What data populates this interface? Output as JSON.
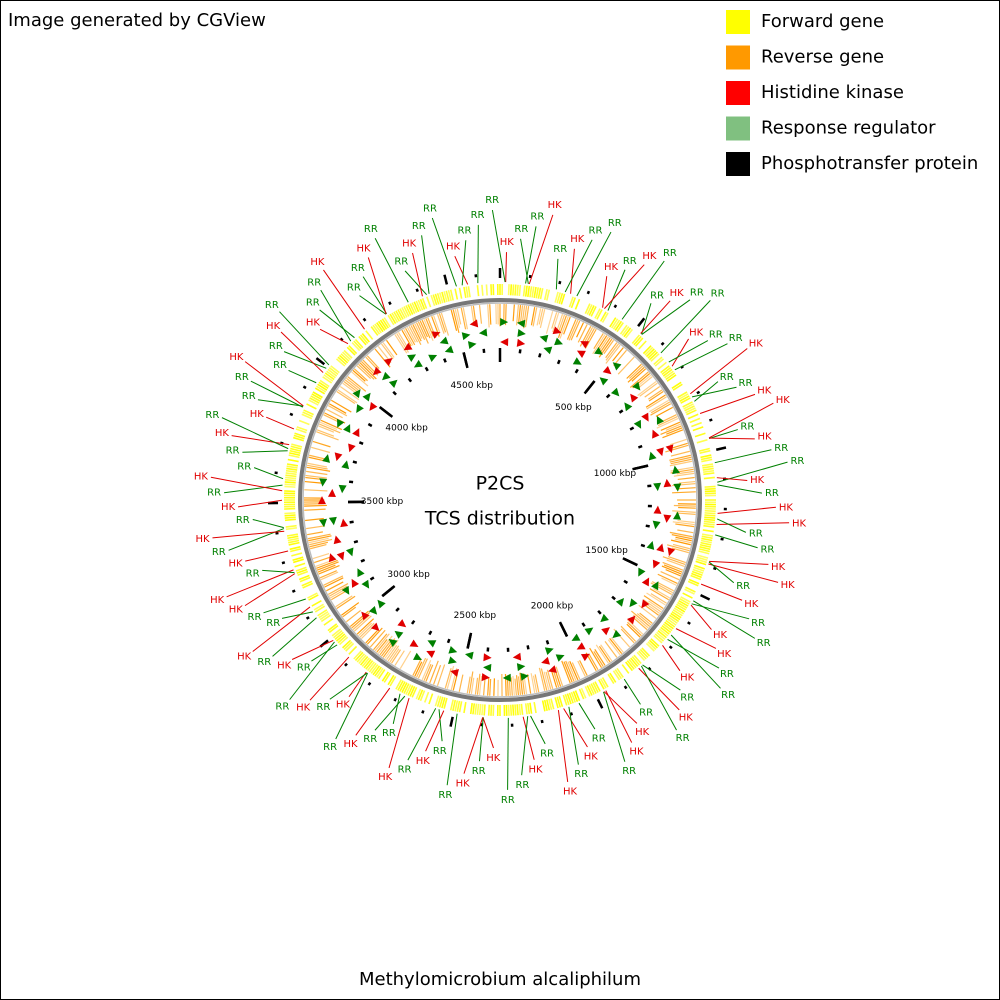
{
  "header": {
    "credit": "Image generated by CGView"
  },
  "legend": {
    "items": [
      {
        "label": "Forward gene",
        "color": "#ffff00"
      },
      {
        "label": "Reverse gene",
        "color": "#ff9900"
      },
      {
        "label": "Histidine kinase",
        "color": "#ff0000"
      },
      {
        "label": "Response regulator",
        "color": "#80c080"
      },
      {
        "label": "Phosphotransfer protein",
        "color": "#000000"
      }
    ]
  },
  "center": {
    "title": "P2CS",
    "subtitle": "TCS distribution"
  },
  "ticks": [
    {
      "value": 500,
      "label": "500 kbp"
    },
    {
      "value": 1000,
      "label": "1000 kbp"
    },
    {
      "value": 1500,
      "label": "1500 kbp"
    },
    {
      "value": 2000,
      "label": "2000 kbp"
    },
    {
      "value": 2500,
      "label": "2500 kbp"
    },
    {
      "value": 3000,
      "label": "3000 kbp"
    },
    {
      "value": 3500,
      "label": "3500 kbp"
    },
    {
      "value": 4000,
      "label": "4000 kbp"
    },
    {
      "value": 4500,
      "label": "4500 kbp"
    }
  ],
  "label_colors": {
    "HK": "#e00000",
    "RR": "#008000"
  },
  "features": [
    "HK",
    "RR",
    "RR",
    "HK",
    "RR",
    "HK",
    "RR",
    "RR",
    "HK",
    "RR",
    "HK",
    "RR",
    "RR",
    "HK",
    "RR",
    "RR",
    "HK",
    "RR",
    "RR",
    "HK",
    "RR",
    "RR",
    "HK",
    "HK",
    "RR",
    "HK",
    "RR",
    "RR",
    "HK",
    "RR",
    "HK",
    "HK",
    "RR",
    "RR",
    "HK",
    "HK",
    "RR",
    "HK",
    "RR",
    "RR",
    "HK",
    "HK",
    "RR",
    "RR",
    "HK",
    "RR",
    "HK",
    "RR",
    "RR",
    "HK",
    "HK",
    "RR",
    "RR",
    "HK",
    "RR",
    "HK",
    "RR",
    "HK",
    "RR",
    "RR",
    "HK",
    "RR",
    "HK",
    "RR",
    "RR",
    "HK",
    "RR",
    "HK",
    "RR",
    "RR",
    "HK",
    "RR",
    "HK",
    "RR",
    "HK",
    "RR",
    "RR",
    "HK",
    "RR",
    "HK",
    "RR",
    "RR",
    "HK",
    "HK",
    "RR",
    "HK",
    "RR",
    "HK",
    "RR",
    "HK",
    "RR",
    "HK",
    "RR",
    "RR",
    "HK",
    "RR",
    "HK",
    "RR",
    "RR",
    "HK",
    "RR",
    "RR",
    "HK",
    "RR",
    "HK",
    "RR",
    "RR",
    "HK",
    "RR",
    "RR",
    "HK",
    "RR",
    "RR",
    "HK",
    "RR",
    "RR",
    "HK",
    "RR",
    "RR",
    "RR"
  ],
  "footer": {
    "organism": "Methylomicrobium alcaliphilum"
  }
}
